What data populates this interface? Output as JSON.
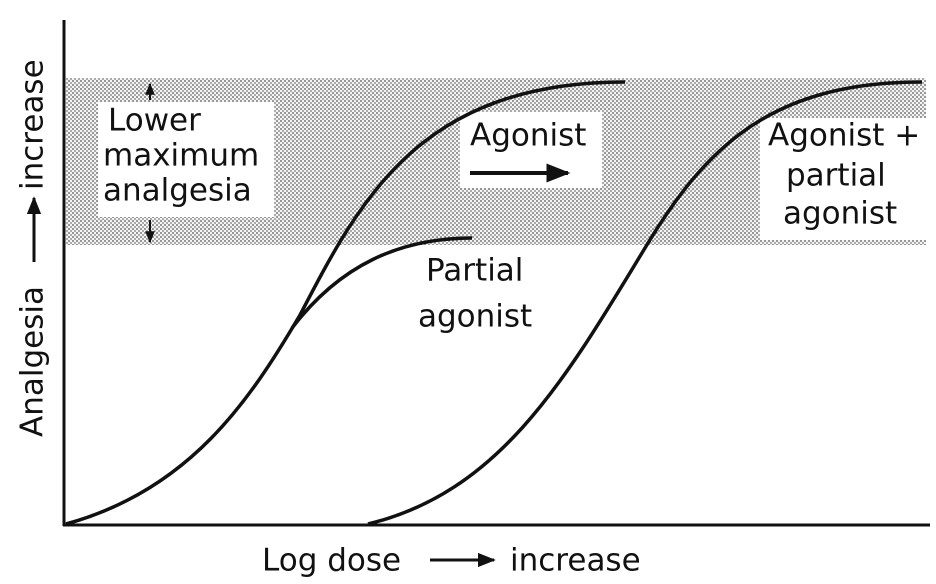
{
  "y_axis_label": {
    "start": "Analgesia",
    "end": "increase"
  },
  "x_axis_label": {
    "start": "Log dose",
    "end": "increase"
  },
  "band_label": [
    "Lower",
    "maximum",
    "analgesia"
  ],
  "curves": {
    "agonist": [
      "Agonist"
    ],
    "partial_agonist": [
      "Partial",
      "agonist"
    ],
    "combined": [
      "Agonist +",
      "partial",
      "agonist"
    ]
  }
}
